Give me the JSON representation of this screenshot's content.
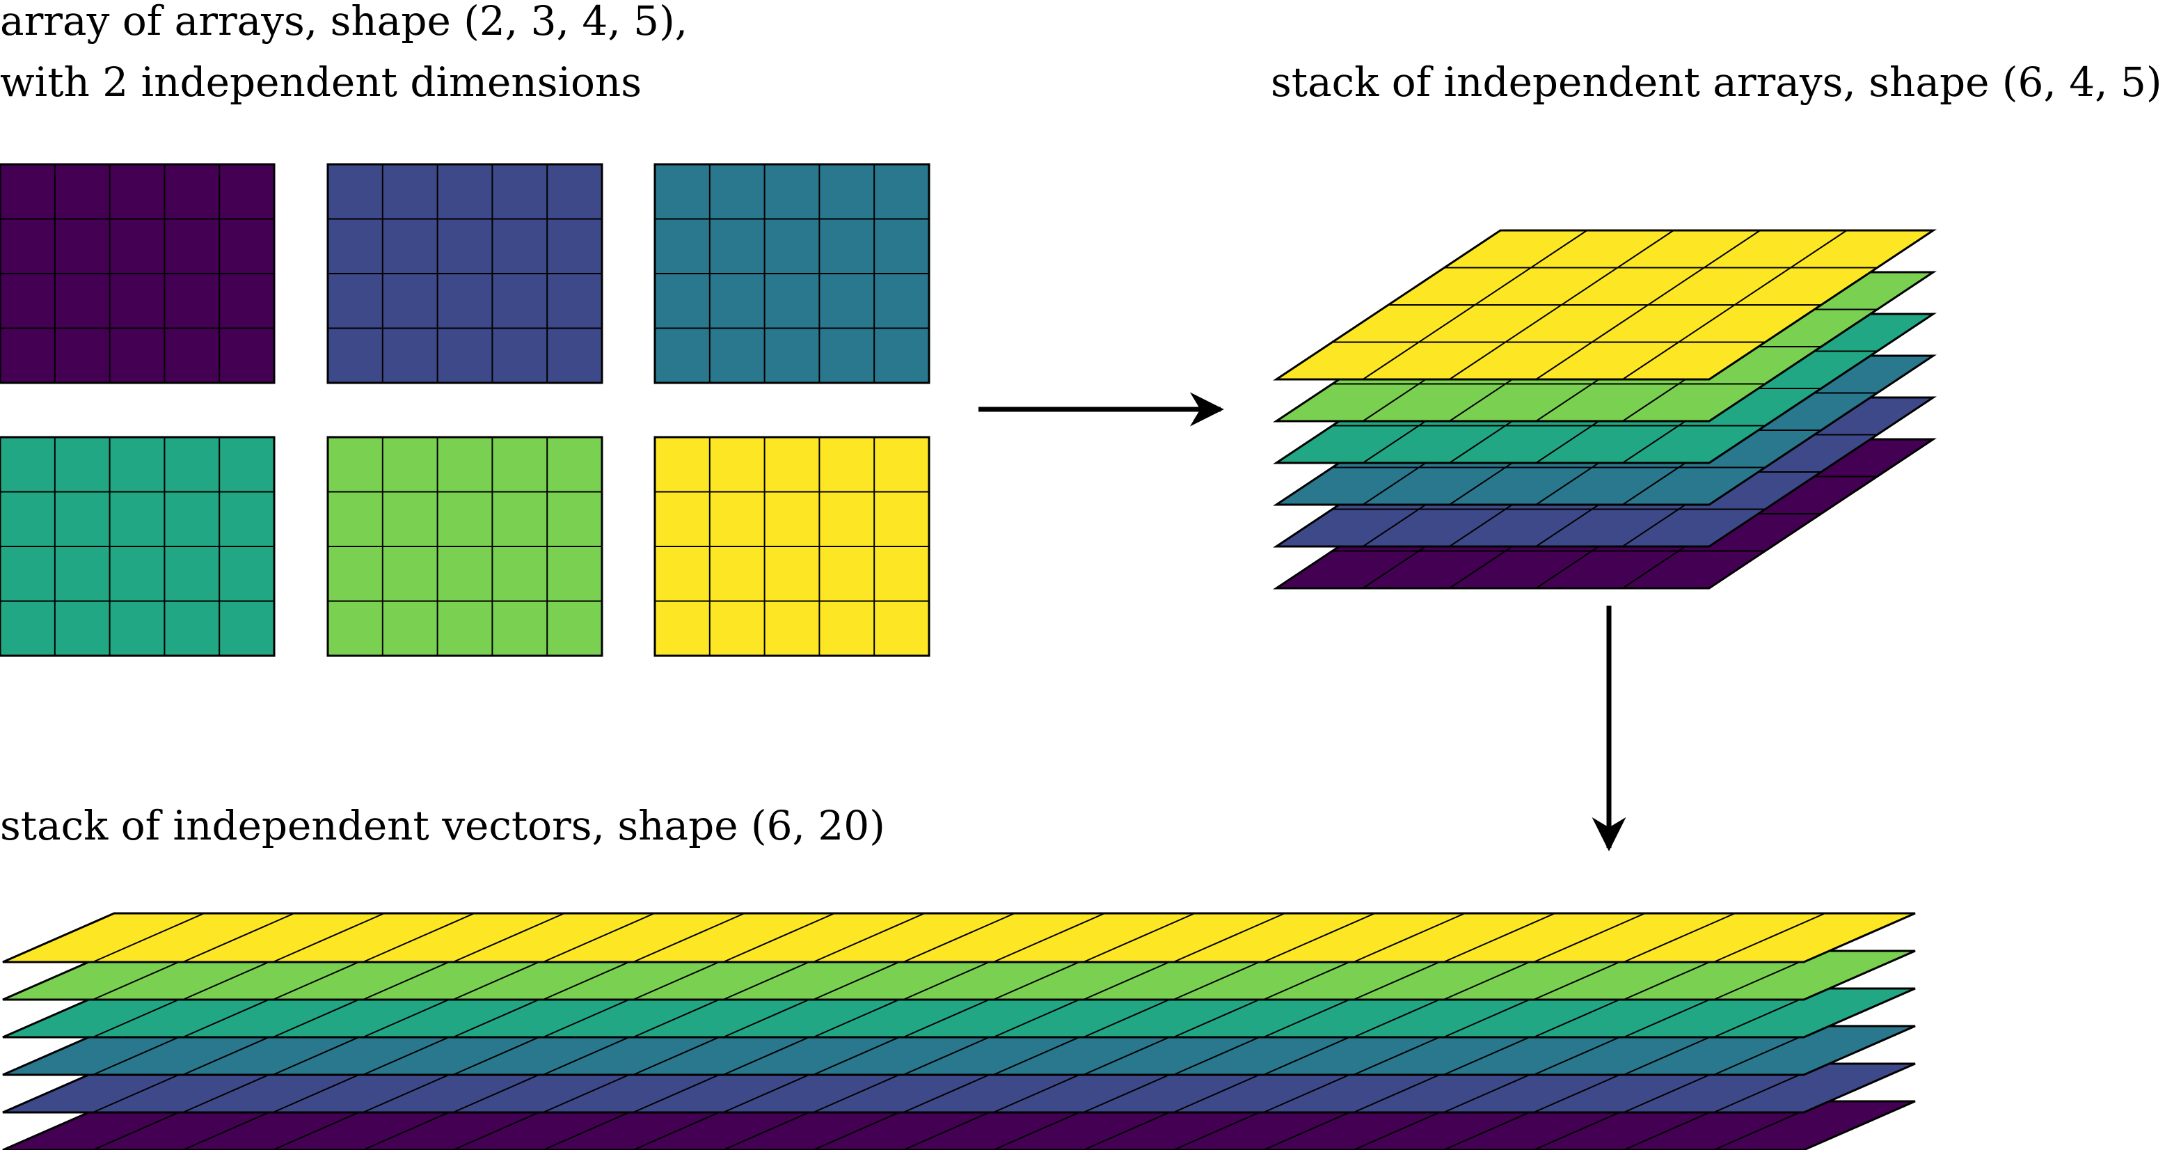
{
  "labels": {
    "input_line1": "array of arrays, shape (2, 3, 4, 5),",
    "input_line2": "with 2 independent dimensions",
    "stack_arrays": "stack of independent arrays, shape (6, 4, 5)",
    "stack_vectors": "stack of independent vectors, shape (6, 20)"
  },
  "input_grid": {
    "batch_shape": [
      2,
      3
    ],
    "array_shape": [
      4,
      5
    ],
    "colors": [
      [
        "#440154",
        "#3e4989",
        "#2a788e"
      ],
      [
        "#22a784",
        "#7ad151",
        "#fde725"
      ]
    ]
  },
  "stack_of_arrays": {
    "shape": [
      6,
      4,
      5
    ],
    "layer_colors_bottom_to_top": [
      "#440154",
      "#3e4989",
      "#2a788e",
      "#22a784",
      "#7ad151",
      "#fde725"
    ]
  },
  "stack_of_vectors": {
    "shape": [
      6,
      20
    ],
    "layer_colors_bottom_to_top": [
      "#440154",
      "#3e4989",
      "#2a788e",
      "#22a784",
      "#7ad151",
      "#fde725"
    ]
  },
  "arrows": [
    {
      "from": "input_grid",
      "to": "stack_of_arrays"
    },
    {
      "from": "stack_of_arrays",
      "to": "stack_of_vectors"
    }
  ]
}
